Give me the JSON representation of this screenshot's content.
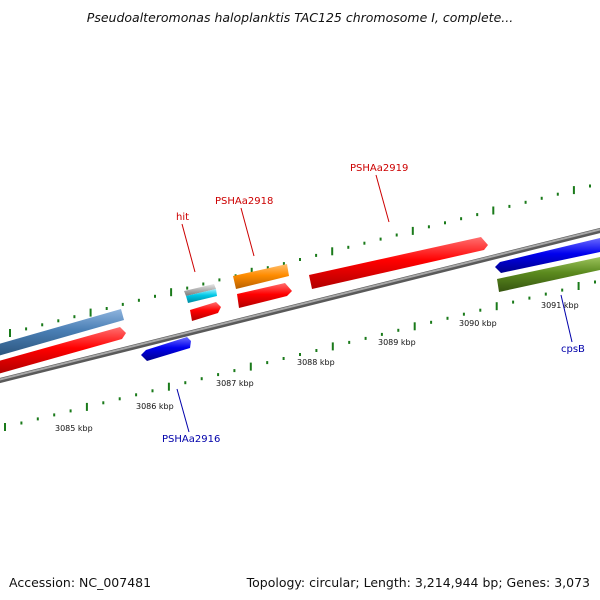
{
  "title": "Pseudoalteromonas haloplanktis TAC125 chromosome I, complete...",
  "footer": {
    "accession": "Accession: NC_007481",
    "summary": "Topology: circular; Length: 3,214,944 bp; Genes: 3,073"
  },
  "colors": {
    "backbone": "#8a8a8a",
    "gene_red": "#ff0000",
    "gene_blue": "#0000ee",
    "gene_steelblue": "#4a7fb5",
    "gene_olive": "#5b8a1e",
    "gene_orange": "#ff8c00",
    "gene_cyan": "#00c8e6",
    "gene_grey": "#b4b4b4",
    "ticks": "#1a7a1a",
    "label_red": "#cc0000",
    "label_blue": "#0000aa"
  },
  "scale": {
    "ticks": [
      "3085 kbp",
      "3086 kbp",
      "3087 kbp",
      "3088 kbp",
      "3089 kbp",
      "3090 kbp",
      "3091 kbp"
    ]
  },
  "features": [
    {
      "id": "steelblue-gene",
      "kind": "cds",
      "color": "steelblue"
    },
    {
      "id": "red-gene-left",
      "kind": "cds",
      "color": "red"
    },
    {
      "id": "PSHAa2916-gene",
      "kind": "cds",
      "color": "blue"
    },
    {
      "id": "hit-grey",
      "kind": "hit",
      "color": "grey"
    },
    {
      "id": "hit-cyan",
      "kind": "hit",
      "color": "cyan"
    },
    {
      "id": "hit-red",
      "kind": "cds",
      "color": "red"
    },
    {
      "id": "orange-gene",
      "kind": "gene",
      "color": "orange"
    },
    {
      "id": "PSHAa2918-gene",
      "kind": "cds",
      "color": "red"
    },
    {
      "id": "PSHAa2919-gene",
      "kind": "cds",
      "color": "red"
    },
    {
      "id": "blue-gene-right",
      "kind": "cds",
      "color": "blue"
    },
    {
      "id": "cpsB-gene",
      "kind": "cds",
      "color": "olive"
    }
  ],
  "labels": {
    "hit": "hit",
    "PSHAa2918": "PSHAa2918",
    "PSHAa2919": "PSHAa2919",
    "PSHAa2916": "PSHAa2916",
    "cpsB": "cpsB"
  }
}
